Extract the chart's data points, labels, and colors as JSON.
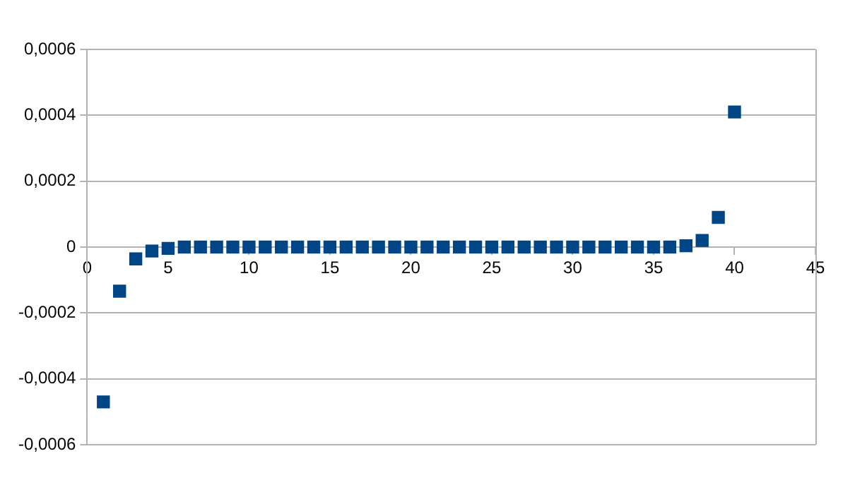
{
  "chart_data": {
    "type": "scatter",
    "x": [
      1,
      2,
      3,
      4,
      5,
      6,
      7,
      8,
      9,
      10,
      11,
      12,
      13,
      14,
      15,
      16,
      17,
      18,
      19,
      20,
      21,
      22,
      23,
      24,
      25,
      26,
      27,
      28,
      29,
      30,
      31,
      32,
      33,
      34,
      35,
      36,
      37,
      38,
      39,
      40
    ],
    "series": [
      {
        "color": "#004586",
        "values": [
          -0.00047,
          -0.000134,
          -3.6e-05,
          -1.2e-05,
          -4e-06,
          0,
          0,
          0,
          0,
          0,
          0,
          0,
          0,
          0,
          0,
          0,
          0,
          0,
          0,
          0,
          0,
          0,
          0,
          0,
          0,
          0,
          0,
          0,
          0,
          0,
          0,
          0,
          0,
          0,
          0,
          0,
          4e-06,
          2e-05,
          9e-05,
          0.00041
        ]
      }
    ],
    "xlim": [
      0,
      45
    ],
    "xticks": [
      0,
      5,
      10,
      15,
      20,
      25,
      30,
      35,
      40,
      45
    ],
    "ylim": [
      -0.0006,
      0.0006
    ],
    "yticks": [
      {
        "value": -0.0006,
        "label": "-0,0006"
      },
      {
        "value": -0.0004,
        "label": "-0,0004"
      },
      {
        "value": -0.0002,
        "label": "-0,0002"
      },
      0,
      {
        "value": 0.0002,
        "label": "0,0002"
      },
      {
        "value": 0.0004,
        "label": "0,0004"
      },
      {
        "value": 0.0006,
        "label": "0,0006"
      }
    ],
    "grid": "y",
    "legend": false,
    "marker": "square"
  }
}
